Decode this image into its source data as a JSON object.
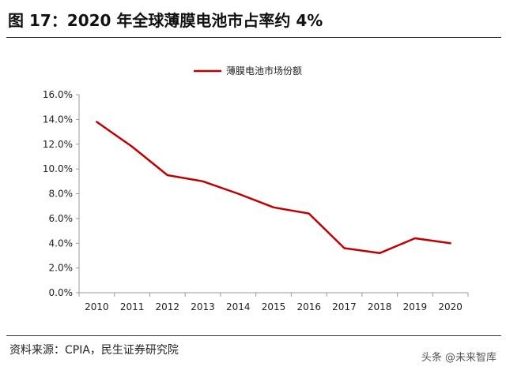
{
  "header": {
    "title": "图 17：2020 年全球薄膜电池市占率约 4%"
  },
  "footer": {
    "source": "资料来源：CPIA，民生证券研究院",
    "watermark": "头条 @未来智库"
  },
  "colors": {
    "series": "#c00000",
    "axis": "#999999",
    "text": "#222222"
  },
  "chart_data": {
    "type": "line",
    "title": "",
    "xlabel": "",
    "ylabel": "",
    "categories": [
      "2010",
      "2011",
      "2012",
      "2013",
      "2014",
      "2015",
      "2016",
      "2017",
      "2018",
      "2019",
      "2020"
    ],
    "series": [
      {
        "name": "薄膜电池市场份额",
        "values": [
          13.8,
          11.8,
          9.5,
          9.0,
          8.0,
          6.9,
          6.4,
          3.6,
          3.2,
          4.4,
          4.0
        ]
      }
    ],
    "ylim": [
      0,
      16
    ],
    "yticks": [
      "0.0%",
      "2.0%",
      "4.0%",
      "6.0%",
      "8.0%",
      "10.0%",
      "12.0%",
      "14.0%",
      "16.0%"
    ],
    "grid": false,
    "legend": "top-center"
  }
}
